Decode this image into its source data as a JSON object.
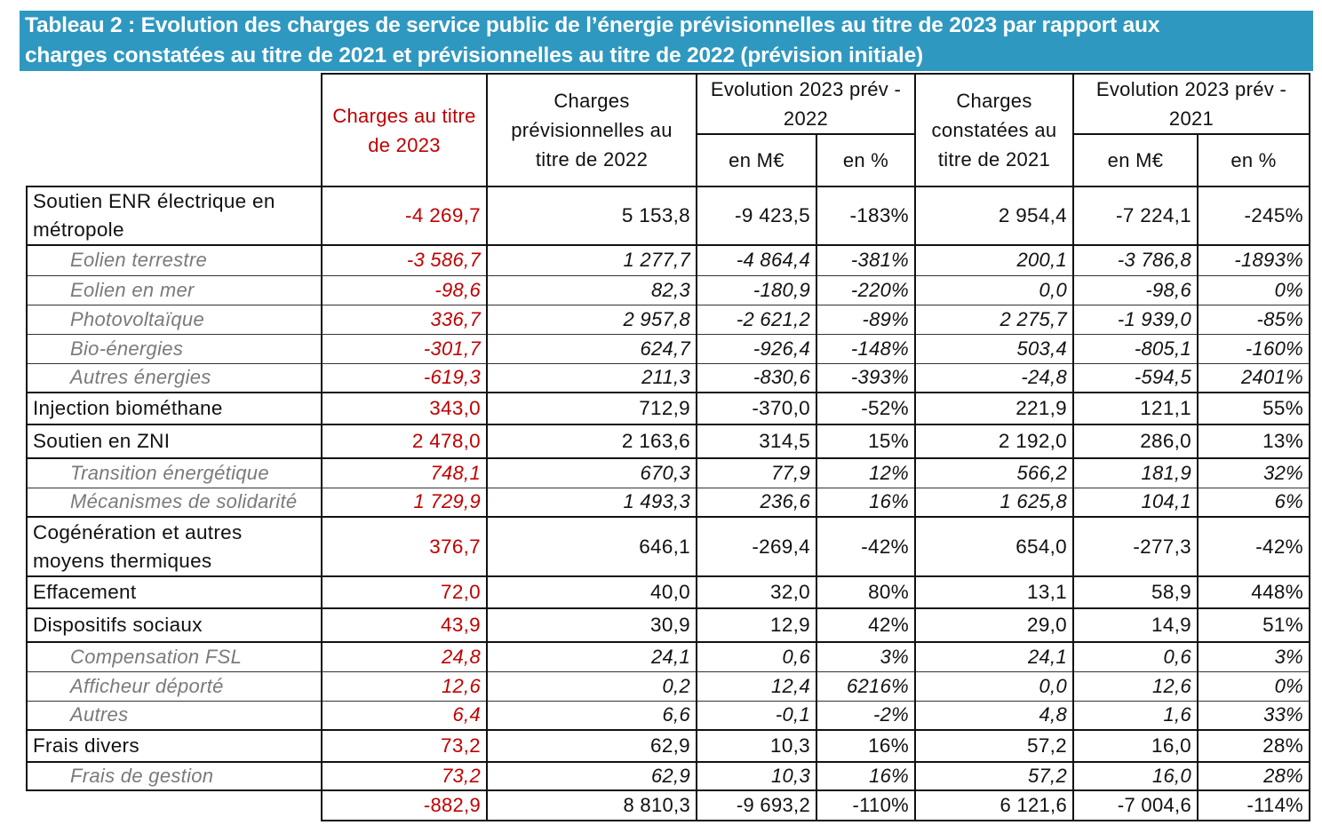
{
  "title": {
    "line1": "Tableau 2 : Evolution des charges de service public de l’énergie prévisionnelles au titre de 2023 par rapport aux",
    "line2": "charges constatées au titre de 2021 et prévisionnelles au titre de 2022 (prévision initiale)"
  },
  "headers": {
    "col1": "Charges au titre de 2023",
    "col2": "Charges prévisionnelles au titre de 2022",
    "evo2022": "Evolution 2023 prév - 2022",
    "col5": "Charges constatées au titre de 2021",
    "evo2021": "Evolution 2023 prév - 2021",
    "en_me": "en M€",
    "en_pct": "en %"
  },
  "colors": {
    "title_bg": "#2f98c0",
    "accent_red": "#c00000"
  },
  "rows": [
    {
      "label": "Soutien ENR électrique en métropole",
      "kind": "main",
      "values": [
        "-4 269,7",
        "5 153,8",
        "-9 423,5",
        "-183%",
        "2 954,4",
        "-7 224,1",
        "-245%"
      ]
    },
    {
      "label": "Eolien terrestre",
      "kind": "sub",
      "values": [
        "-3 586,7",
        "1 277,7",
        "-4 864,4",
        "-381%",
        "200,1",
        "-3 786,8",
        "-1893%"
      ]
    },
    {
      "label": "Eolien en mer",
      "kind": "sub",
      "values": [
        "-98,6",
        "82,3",
        "-180,9",
        "-220%",
        "0,0",
        "-98,6",
        "0%"
      ]
    },
    {
      "label": "Photovoltaïque",
      "kind": "sub",
      "values": [
        "336,7",
        "2 957,8",
        "-2 621,2",
        "-89%",
        "2 275,7",
        "-1 939,0",
        "-85%"
      ]
    },
    {
      "label": "Bio-énergies",
      "kind": "sub",
      "values": [
        "-301,7",
        "624,7",
        "-926,4",
        "-148%",
        "503,4",
        "-805,1",
        "-160%"
      ]
    },
    {
      "label": "Autres énergies",
      "kind": "sub",
      "values": [
        "-619,3",
        "211,3",
        "-830,6",
        "-393%",
        "-24,8",
        "-594,5",
        "2401%"
      ]
    },
    {
      "label": "Injection biométhane",
      "kind": "main",
      "values": [
        "343,0",
        "712,9",
        "-370,0",
        "-52%",
        "221,9",
        "121,1",
        "55%"
      ]
    },
    {
      "label": "Soutien en ZNI",
      "kind": "main",
      "values": [
        "2 478,0",
        "2 163,6",
        "314,5",
        "15%",
        "2 192,0",
        "286,0",
        "13%"
      ]
    },
    {
      "label": "Transition énergétique",
      "kind": "sub",
      "values": [
        "748,1",
        "670,3",
        "77,9",
        "12%",
        "566,2",
        "181,9",
        "32%"
      ]
    },
    {
      "label": "Mécanismes de solidarité",
      "kind": "sub",
      "values": [
        "1 729,9",
        "1 493,3",
        "236,6",
        "16%",
        "1 625,8",
        "104,1",
        "6%"
      ]
    },
    {
      "label": "Cogénération et autres moyens thermiques",
      "kind": "main",
      "values": [
        "376,7",
        "646,1",
        "-269,4",
        "-42%",
        "654,0",
        "-277,3",
        "-42%"
      ]
    },
    {
      "label": "Effacement",
      "kind": "main",
      "values": [
        "72,0",
        "40,0",
        "32,0",
        "80%",
        "13,1",
        "58,9",
        "448%"
      ]
    },
    {
      "label": "Dispositifs sociaux",
      "kind": "main",
      "values": [
        "43,9",
        "30,9",
        "12,9",
        "42%",
        "29,0",
        "14,9",
        "51%"
      ]
    },
    {
      "label": "Compensation FSL",
      "kind": "sub",
      "values": [
        "24,8",
        "24,1",
        "0,6",
        "3%",
        "24,1",
        "0,6",
        "3%"
      ]
    },
    {
      "label": "Afficheur déporté",
      "kind": "sub",
      "values": [
        "12,6",
        "0,2",
        "12,4",
        "6216%",
        "0,0",
        "12,6",
        "0%"
      ]
    },
    {
      "label": "Autres",
      "kind": "sub",
      "values": [
        "6,4",
        "6,6",
        "-0,1",
        "-2%",
        "4,8",
        "1,6",
        "33%"
      ]
    },
    {
      "label": "Frais divers",
      "kind": "main",
      "values": [
        "73,2",
        "62,9",
        "10,3",
        "16%",
        "57,2",
        "16,0",
        "28%"
      ]
    },
    {
      "label": "Frais de gestion",
      "kind": "sub",
      "values": [
        "73,2",
        "62,9",
        "10,3",
        "16%",
        "57,2",
        "16,0",
        "28%"
      ]
    },
    {
      "label": "",
      "kind": "total",
      "values": [
        "-882,9",
        "8 810,3",
        "-9 693,2",
        "-110%",
        "6 121,6",
        "-7 004,6",
        "-114%"
      ]
    }
  ]
}
